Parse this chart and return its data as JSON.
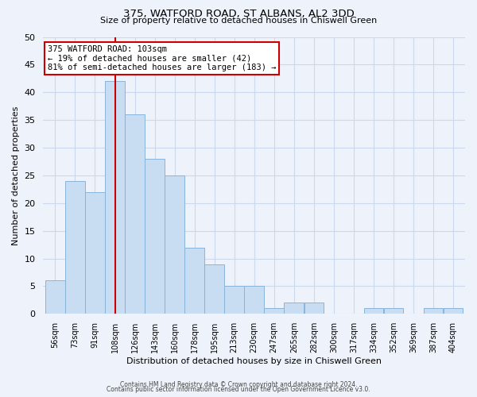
{
  "title": "375, WATFORD ROAD, ST ALBANS, AL2 3DD",
  "subtitle": "Size of property relative to detached houses in Chiswell Green",
  "xlabel": "Distribution of detached houses by size in Chiswell Green",
  "ylabel": "Number of detached properties",
  "footer_line1": "Contains HM Land Registry data © Crown copyright and database right 2024.",
  "footer_line2": "Contains public sector information licensed under the Open Government Licence v3.0.",
  "bin_labels": [
    "56sqm",
    "73sqm",
    "91sqm",
    "108sqm",
    "126sqm",
    "143sqm",
    "160sqm",
    "178sqm",
    "195sqm",
    "213sqm",
    "230sqm",
    "247sqm",
    "265sqm",
    "282sqm",
    "300sqm",
    "317sqm",
    "334sqm",
    "352sqm",
    "369sqm",
    "387sqm",
    "404sqm"
  ],
  "bar_heights": [
    6,
    24,
    22,
    42,
    36,
    28,
    25,
    12,
    9,
    5,
    5,
    1,
    2,
    2,
    0,
    0,
    1,
    1,
    0,
    1,
    1
  ],
  "ylim": [
    0,
    50
  ],
  "yticks": [
    0,
    5,
    10,
    15,
    20,
    25,
    30,
    35,
    40,
    45,
    50
  ],
  "bar_color": "#c8ddf2",
  "bar_edge_color": "#89b4d9",
  "vline_color": "#cc0000",
  "annotation_title": "375 WATFORD ROAD: 103sqm",
  "annotation_line1": "← 19% of detached houses are smaller (42)",
  "annotation_line2": "81% of semi-detached houses are larger (183) →",
  "annotation_box_facecolor": "#ffffff",
  "annotation_box_edgecolor": "#cc0000",
  "grid_color": "#ccd8ec",
  "background_color": "#eef2fa"
}
